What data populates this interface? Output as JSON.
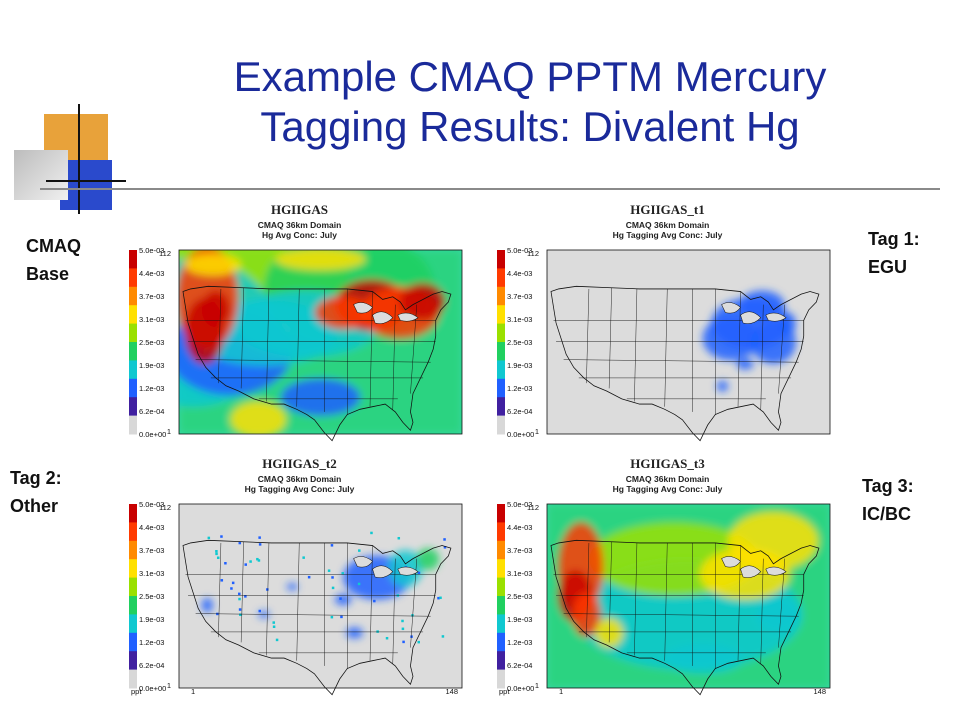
{
  "slide": {
    "title_line1": "Example CMAQ PPTM Mercury",
    "title_line2": "Tagging Results: Divalent Hg"
  },
  "labels": {
    "base_line1": "CMAQ",
    "base_line2": "Base",
    "tag1_line1": "Tag 1:",
    "tag1_line2": "EGU",
    "tag2_line1": "Tag 2:",
    "tag2_line2": "Other",
    "tag3_line1": "Tag 3:",
    "tag3_line2": "IC/BC"
  },
  "colorbar": {
    "ticks": [
      "5.0e-03",
      "4.4e-03",
      "3.7e-03",
      "3.1e-03",
      "2.5e-03",
      "1.9e-03",
      "1.2e-03",
      "6.2e-04",
      "0.0e+00"
    ],
    "colors": [
      "#c80000",
      "#ff3a00",
      "#ff8a00",
      "#ffe000",
      "#9ae000",
      "#20d060",
      "#10c8d0",
      "#2060ff",
      "#4020a0",
      "#d8d8d8"
    ],
    "unit": "ppt",
    "y_max_label": "112",
    "y_min_label": "1",
    "x_min_label": "1",
    "x_max_label": "148"
  },
  "maps": [
    {
      "name": "HGIIGAS",
      "subtitle1": "CMAQ 36km Domain",
      "subtitle2": "Hg Avg Conc: July",
      "pattern": "base"
    },
    {
      "name": "HGIIGAS_t1",
      "subtitle1": "CMAQ 36km Domain",
      "subtitle2": "Hg Tagging Avg Conc: July",
      "pattern": "egu"
    },
    {
      "name": "HGIIGAS_t2",
      "subtitle1": "CMAQ 36km Domain",
      "subtitle2": "Hg Tagging Avg Conc: July",
      "pattern": "other"
    },
    {
      "name": "HGIIGAS_t3",
      "subtitle1": "CMAQ 36km Domain",
      "subtitle2": "Hg Tagging Avg Conc: July",
      "pattern": "icbc"
    }
  ]
}
